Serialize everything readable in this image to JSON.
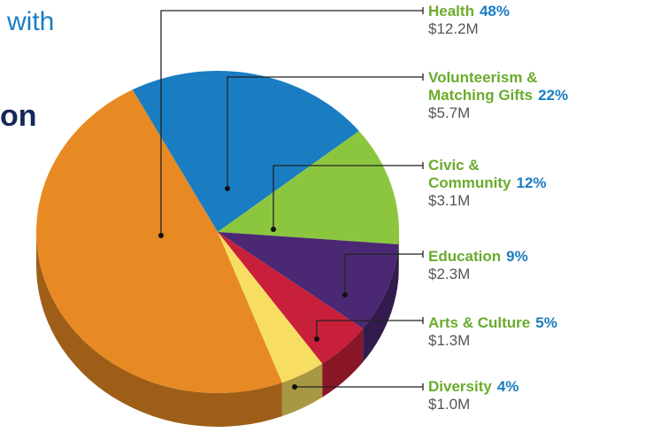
{
  "header": {
    "title_fragment_1": "with",
    "title_fragment_2": "on"
  },
  "chart_data": {
    "type": "pie3d",
    "categories": [
      "Volunteerism &\nMatching Gifts",
      "Civic &\nCommunity",
      "Education",
      "Arts & Culture",
      "Diversity",
      "Health"
    ],
    "values": [
      22,
      12,
      9,
      5,
      4,
      48
    ],
    "value_labels": [
      "22%",
      "12%",
      "9%",
      "5%",
      "4%",
      "48%"
    ],
    "amounts": [
      "$5.7M",
      "$3.1M",
      "$2.3M",
      "$1.3M",
      "$1.0M",
      "$12.2M"
    ],
    "colors": [
      "#1a7dc2",
      "#8cc63f",
      "#4b2873",
      "#c8203a",
      "#f7de62",
      "#e88a23"
    ]
  }
}
